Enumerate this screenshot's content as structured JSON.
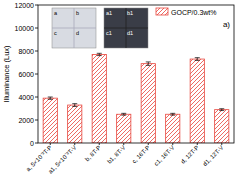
{
  "chart_data": {
    "type": "bar",
    "y_label": "Illuminance (Lux)",
    "categories": [
      "a, 5×10⁻³T-P",
      "a1, 5×10⁻³T-V",
      "b, 8T-P",
      "b1, 8T-V",
      "c, 16T-P",
      "c1, 16T-V",
      "d, 12T-P",
      "d1, 12T-V"
    ],
    "series": [
      {
        "name": "GOCP/0.3wt%",
        "color": "#e8453c",
        "values": [
          3900,
          3300,
          7700,
          2500,
          6900,
          2500,
          7300,
          2900
        ],
        "errors": [
          100,
          120,
          100,
          80,
          150,
          80,
          120,
          80
        ]
      }
    ],
    "ylim": [
      0,
      12000
    ],
    "yticks": [
      0,
      2000,
      4000,
      6000,
      8000,
      10000,
      12000
    ],
    "legend": "top-right",
    "annotations": [
      "a",
      "b",
      "c",
      "d",
      "a1",
      "b1",
      "c1",
      "d1"
    ],
    "panel_label": "a)"
  }
}
